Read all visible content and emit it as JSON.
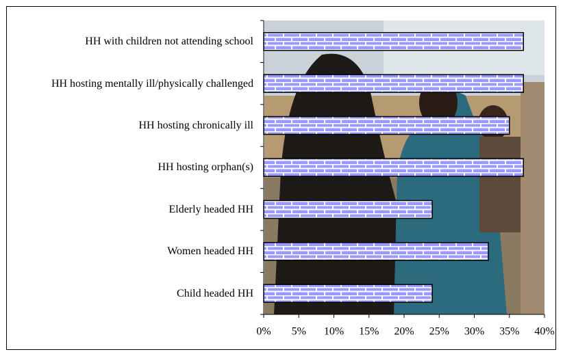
{
  "chart_data": {
    "type": "bar",
    "orientation": "horizontal",
    "categories": [
      "HH with children not attending school",
      "HH hosting mentally ill/physically challenged",
      "HH hosting chronically ill",
      "HH hosting orphan(s)",
      "Elderly headed HH",
      "Women headed HH",
      "Child headed HH"
    ],
    "values": [
      37,
      37,
      35,
      37,
      24,
      32,
      24
    ],
    "color": "#9999ff",
    "xlim": [
      0,
      40
    ],
    "xticks": [
      {
        "value": 0,
        "label": "0%"
      },
      {
        "value": 5,
        "label": "5%"
      },
      {
        "value": 10,
        "label": "10%"
      },
      {
        "value": 15,
        "label": "15%"
      },
      {
        "value": 20,
        "label": "20%"
      },
      {
        "value": 25,
        "label": "25%"
      },
      {
        "value": 30,
        "label": "30%"
      },
      {
        "value": 35,
        "label": "35%"
      },
      {
        "value": 40,
        "label": "40%"
      }
    ]
  }
}
